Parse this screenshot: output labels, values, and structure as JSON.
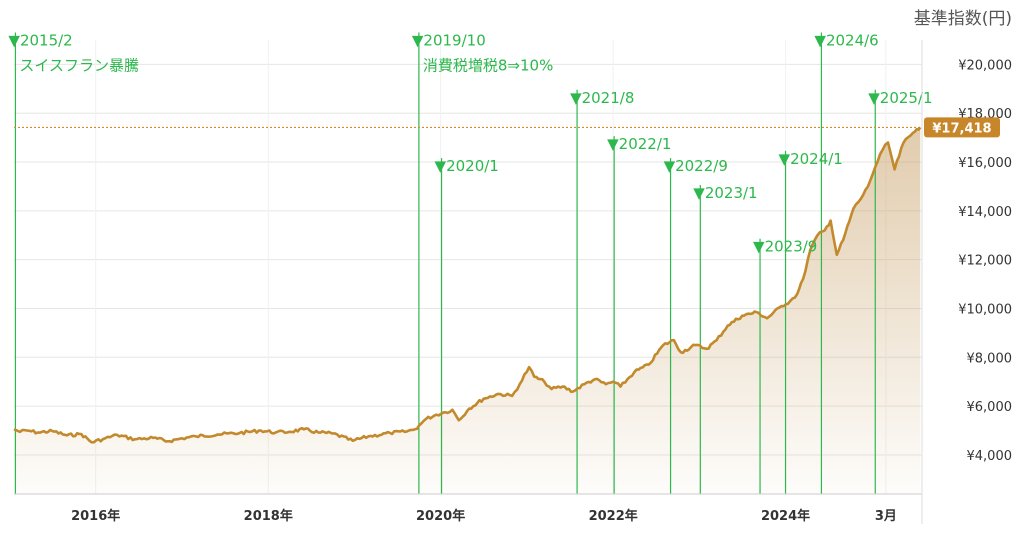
{
  "chart_data": {
    "type": "area",
    "unit_label": "基準指数(円)",
    "y_ticks": [
      "¥4,000",
      "¥6,000",
      "¥8,000",
      "¥10,000",
      "¥12,000",
      "¥14,000",
      "¥16,000",
      "¥18,000",
      "¥20,000"
    ],
    "y_tick_values": [
      4000,
      6000,
      8000,
      10000,
      12000,
      14000,
      16000,
      18000,
      20000
    ],
    "ylim": [
      2400,
      21000
    ],
    "x_ticks": [
      {
        "label": "2016年",
        "date": "2016-01-01"
      },
      {
        "label": "2018年",
        "date": "2018-01-01"
      },
      {
        "label": "2020年",
        "date": "2020-01-01"
      },
      {
        "label": "2022年",
        "date": "2022-01-01"
      },
      {
        "label": "2024年",
        "date": "2024-01-01"
      },
      {
        "label": "3月",
        "date": "2025-03-01"
      }
    ],
    "xlim": [
      "2015-01-20",
      "2025-08-01"
    ],
    "current_value": {
      "label": "¥17,418",
      "value": 17418
    },
    "series": [
      {
        "color": "#c28a2c",
        "points": [
          [
            "2015-01-20",
            5050
          ],
          [
            "2015-02-15",
            4950
          ],
          [
            "2015-03-15",
            5000
          ],
          [
            "2015-05-01",
            4920
          ],
          [
            "2015-07-01",
            4980
          ],
          [
            "2015-09-01",
            4800
          ],
          [
            "2015-11-01",
            4860
          ],
          [
            "2015-12-15",
            4520
          ],
          [
            "2016-02-01",
            4650
          ],
          [
            "2016-04-01",
            4820
          ],
          [
            "2016-06-15",
            4640
          ],
          [
            "2016-09-01",
            4700
          ],
          [
            "2016-11-01",
            4560
          ],
          [
            "2017-01-01",
            4680
          ],
          [
            "2017-03-01",
            4760
          ],
          [
            "2017-06-01",
            4840
          ],
          [
            "2017-09-01",
            4900
          ],
          [
            "2017-12-01",
            5000
          ],
          [
            "2018-02-01",
            4920
          ],
          [
            "2018-04-01",
            4950
          ],
          [
            "2018-06-01",
            5050
          ],
          [
            "2018-08-01",
            4920
          ],
          [
            "2018-10-01",
            4880
          ],
          [
            "2018-12-25",
            4580
          ],
          [
            "2019-03-01",
            4760
          ],
          [
            "2019-06-01",
            4900
          ],
          [
            "2019-08-01",
            4950
          ],
          [
            "2019-09-15",
            5050
          ],
          [
            "2019-10-01",
            5200
          ],
          [
            "2019-11-01",
            5480
          ],
          [
            "2019-12-15",
            5650
          ],
          [
            "2020-01-20",
            5750
          ],
          [
            "2020-02-20",
            5850
          ],
          [
            "2020-03-18",
            5420
          ],
          [
            "2020-05-01",
            5900
          ],
          [
            "2020-07-01",
            6300
          ],
          [
            "2020-09-01",
            6500
          ],
          [
            "2020-10-30",
            6420
          ],
          [
            "2020-12-01",
            6900
          ],
          [
            "2021-01-10",
            7600
          ],
          [
            "2021-02-01",
            7200
          ],
          [
            "2021-03-15",
            7000
          ],
          [
            "2021-04-15",
            6700
          ],
          [
            "2021-06-01",
            6800
          ],
          [
            "2021-07-15",
            6600
          ],
          [
            "2021-09-01",
            6900
          ],
          [
            "2021-10-15",
            7100
          ],
          [
            "2021-12-01",
            6900
          ],
          [
            "2022-01-01",
            7000
          ],
          [
            "2022-02-01",
            6800
          ],
          [
            "2022-04-01",
            7400
          ],
          [
            "2022-06-01",
            7700
          ],
          [
            "2022-08-01",
            8500
          ],
          [
            "2022-09-15",
            8700
          ],
          [
            "2022-10-15",
            8200
          ],
          [
            "2022-12-15",
            8500
          ],
          [
            "2023-02-01",
            8350
          ],
          [
            "2023-03-15",
            8700
          ],
          [
            "2023-05-01",
            9300
          ],
          [
            "2023-07-01",
            9700
          ],
          [
            "2023-09-01",
            9850
          ],
          [
            "2023-10-15",
            9600
          ],
          [
            "2023-12-15",
            10100
          ],
          [
            "2024-01-20",
            10300
          ],
          [
            "2024-02-20",
            10600
          ],
          [
            "2024-03-15",
            11200
          ],
          [
            "2024-04-15",
            12400
          ],
          [
            "2024-05-15",
            13000
          ],
          [
            "2024-06-15",
            13200
          ],
          [
            "2024-07-10",
            13600
          ],
          [
            "2024-08-05",
            12200
          ],
          [
            "2024-09-01",
            12800
          ],
          [
            "2024-10-15",
            14100
          ],
          [
            "2024-11-15",
            14500
          ],
          [
            "2024-12-15",
            15000
          ],
          [
            "2025-01-15",
            15800
          ],
          [
            "2025-02-15",
            16500
          ],
          [
            "2025-03-10",
            16800
          ],
          [
            "2025-04-07",
            15700
          ],
          [
            "2025-05-15",
            16800
          ],
          [
            "2025-06-15",
            17100
          ],
          [
            "2025-07-10",
            17350
          ],
          [
            "2025-07-25",
            17418
          ]
        ]
      }
    ],
    "annotations": [
      {
        "date": "2015-01-26",
        "label": "▼2015/2",
        "sublabel": "スイスフラン暴騰",
        "label_y": 20900
      },
      {
        "date": "2019-10-01",
        "label": "▼2019/10",
        "sublabel": "消費税増税8⇒10%",
        "label_y": 20900
      },
      {
        "date": "2020-01-05",
        "label": "▼2020/1",
        "sublabel": "",
        "label_y": 15750
      },
      {
        "date": "2021-08-01",
        "label": "▼2021/8",
        "sublabel": "",
        "label_y": 18550
      },
      {
        "date": "2022-01-05",
        "label": "▼2022/1",
        "sublabel": "",
        "label_y": 16650
      },
      {
        "date": "2022-09-01",
        "label": "▼2022/9",
        "sublabel": "",
        "label_y": 15750
      },
      {
        "date": "2023-01-05",
        "label": "▼2023/1",
        "sublabel": "",
        "label_y": 14650
      },
      {
        "date": "2023-09-15",
        "label": "▼2023/9",
        "sublabel": "",
        "label_y": 12450
      },
      {
        "date": "2024-01-01",
        "label": "▼2024/1",
        "sublabel": "",
        "label_y": 16050
      },
      {
        "date": "2024-06-01",
        "label": "▼2024/6",
        "sublabel": "",
        "label_y": 20900
      },
      {
        "date": "2025-01-15",
        "label": "▼2025/1",
        "sublabel": "",
        "label_y": 18550
      }
    ],
    "colors": {
      "line": "#c28a2c",
      "annotation": "#2db84d",
      "reference": "#d4892b",
      "badge": "#c8862a",
      "grid": "#e6e6e6"
    }
  }
}
